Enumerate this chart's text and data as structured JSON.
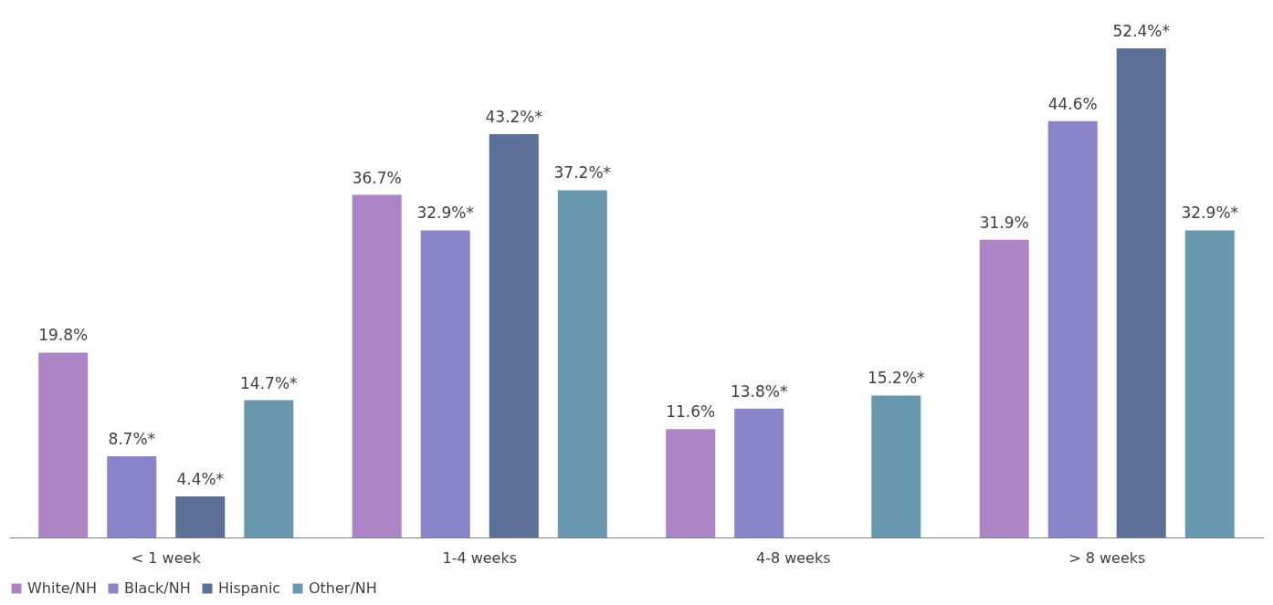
{
  "chart_data": {
    "type": "bar",
    "categories": [
      "< 1 week",
      "1-4 weeks",
      "4-8 weeks",
      "> 8 weeks"
    ],
    "series": [
      {
        "name": "White/NH",
        "color": "#ad84c6",
        "values": [
          19.8,
          36.7,
          11.6,
          31.9
        ],
        "value_labels": [
          "19.8%",
          "36.7%",
          "11.6%",
          "31.9%"
        ]
      },
      {
        "name": "Black/NH",
        "color": "#8784c7",
        "values": [
          8.7,
          32.9,
          13.8,
          44.6
        ],
        "value_labels": [
          "8.7%*",
          "32.9%*",
          "13.8%*",
          "44.6%"
        ]
      },
      {
        "name": "Hispanic",
        "color": "#5b6f97",
        "values": [
          4.4,
          43.2,
          null,
          52.4
        ],
        "value_labels": [
          "4.4%*",
          "43.2%*",
          null,
          "52.4%*"
        ]
      },
      {
        "name": "Other/NH",
        "color": "#6798b0",
        "values": [
          14.7,
          37.2,
          15.2,
          32.9
        ],
        "value_labels": [
          "14.7%*",
          "37.2%*",
          "15.2%*",
          "32.9%*"
        ]
      }
    ],
    "legend": "bottom",
    "grid": false
  }
}
